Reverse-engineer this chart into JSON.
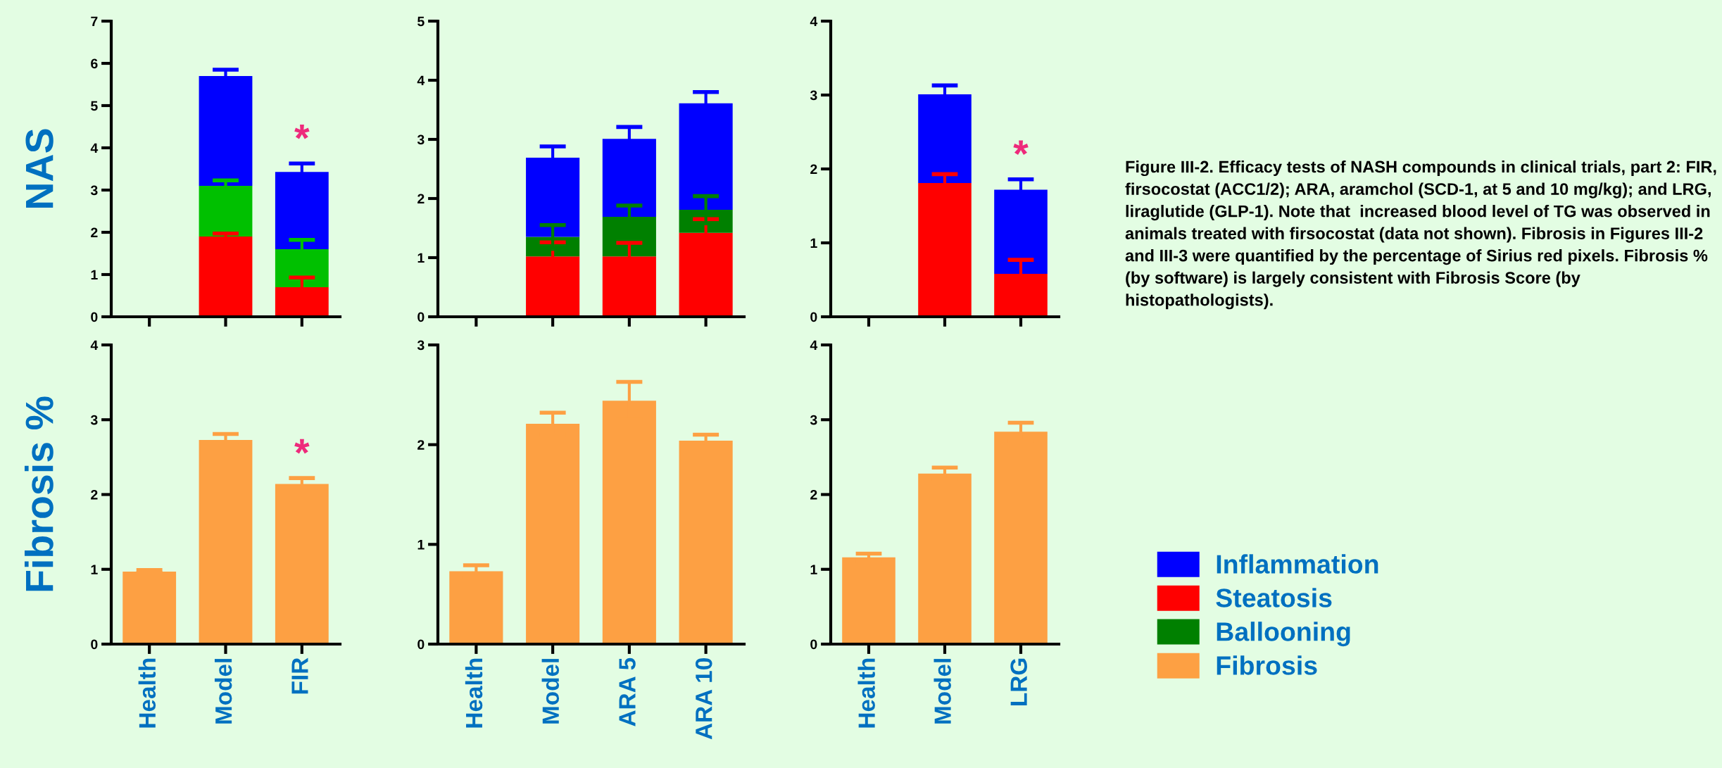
{
  "chart_data": [
    {
      "type": "bar",
      "stacked": true,
      "ylabel": "NAS",
      "categories": [
        "Health",
        "Model",
        "FIR"
      ],
      "ylim": [
        0,
        7
      ],
      "yticks": [
        0,
        1,
        2,
        3,
        4,
        5,
        6,
        7
      ],
      "tick_labels": "y",
      "legend": "right",
      "series": [
        {
          "name": "Steatosis",
          "color": "#ff0000",
          "values": [
            0,
            1.9,
            0.7
          ],
          "errors": [
            null,
            0.07,
            0.23
          ]
        },
        {
          "color": "#00c000",
          "values": [
            0,
            1.2,
            0.9
          ],
          "errors": [
            null,
            0.13,
            0.22
          ]
        },
        {
          "name": "Inflammation",
          "color": "#0000ff",
          "values": [
            0,
            2.6,
            1.83
          ],
          "errors": [
            null,
            0.15,
            0.2
          ]
        }
      ],
      "annotations": [
        "*"
      ]
    },
    {
      "type": "bar",
      "stacked": true,
      "categories": [
        "Health",
        "Model",
        "ARA 5",
        "ARA 10"
      ],
      "ylim": [
        0,
        5
      ],
      "yticks": [
        0,
        1,
        2,
        3,
        4,
        5
      ],
      "tick_labels": "y",
      "legend": "right",
      "series": [
        {
          "name": "Steatosis",
          "color": "#ff0000",
          "values": [
            0,
            1.02,
            1.02,
            1.42
          ],
          "errors": [
            null,
            0.24,
            0.23,
            0.23
          ]
        },
        {
          "name": "Ballooning",
          "color": "#008000",
          "values": [
            0,
            0.33,
            0.67,
            0.39
          ],
          "errors": [
            null,
            0.2,
            0.19,
            0.23
          ]
        },
        {
          "name": "Inflammation",
          "color": "#0000ff",
          "values": [
            0,
            1.34,
            1.32,
            1.8
          ],
          "errors": [
            null,
            0.19,
            0.2,
            0.19
          ]
        }
      ]
    },
    {
      "type": "bar",
      "stacked": true,
      "categories": [
        "Health",
        "Model",
        "LRG"
      ],
      "ylim": [
        0,
        4
      ],
      "yticks": [
        0,
        1,
        2,
        3,
        4
      ],
      "tick_labels": "y",
      "legend": "right",
      "series": [
        {
          "name": "Steatosis",
          "color": "#ff0000",
          "values": [
            0,
            1.81,
            0.58
          ],
          "errors": [
            null,
            0.12,
            0.19
          ]
        },
        {
          "name": "Inflammation",
          "color": "#0000ff",
          "values": [
            0,
            1.2,
            1.14
          ],
          "errors": [
            null,
            0.12,
            0.14
          ]
        }
      ],
      "annotations": [
        "*"
      ]
    },
    {
      "type": "bar",
      "ylabel": "Fibrosis %",
      "categories": [
        "Health",
        "Model",
        "FIR"
      ],
      "ylim": [
        0,
        4
      ],
      "yticks": [
        0,
        1,
        2,
        3,
        4
      ],
      "legend": "right",
      "series": [
        {
          "name": "Fibrosis",
          "color": "#fda043",
          "values": [
            0.97,
            2.73,
            2.14
          ],
          "errors": [
            0.02,
            0.08,
            0.08
          ]
        }
      ],
      "annotations": [
        "*"
      ]
    },
    {
      "type": "bar",
      "categories": [
        "Health",
        "Model",
        "ARA 5",
        "ARA 10"
      ],
      "ylim": [
        0,
        3
      ],
      "yticks": [
        0,
        1,
        2,
        3
      ],
      "legend": "right",
      "series": [
        {
          "name": "Fibrosis",
          "color": "#fda043",
          "values": [
            0.73,
            2.21,
            2.44,
            2.04
          ],
          "errors": [
            0.06,
            0.11,
            0.19,
            0.06
          ]
        }
      ]
    },
    {
      "type": "bar",
      "categories": [
        "Health",
        "Model",
        "LRG"
      ],
      "ylim": [
        0,
        4
      ],
      "yticks": [
        0,
        1,
        2,
        3,
        4
      ],
      "legend": "right",
      "series": [
        {
          "name": "Fibrosis",
          "color": "#fda043",
          "values": [
            1.16,
            2.28,
            2.84
          ],
          "errors": [
            0.05,
            0.08,
            0.12
          ]
        }
      ]
    },
    {
      "type": "other",
      "annotations": [
        "Figure III-2. Efficacy tests of NASH compounds in clinical trials, part 2: FIR, firsocostat (ACC1/2); ARA, aramchol (SCD-1, at 5 and 10 mg/kg); and LRG, liraglutide (GLP-1). Note that  increased blood level of TG was observed in animals treated with firsocostat (data not shown). Fibrosis in Figures III-2 and III-3 were quantified by the percentage of Sirius red pixels. Fibrosis % (by software) is largely consistent with Fibrosis Score (by histopathologists)."
      ]
    }
  ]
}
